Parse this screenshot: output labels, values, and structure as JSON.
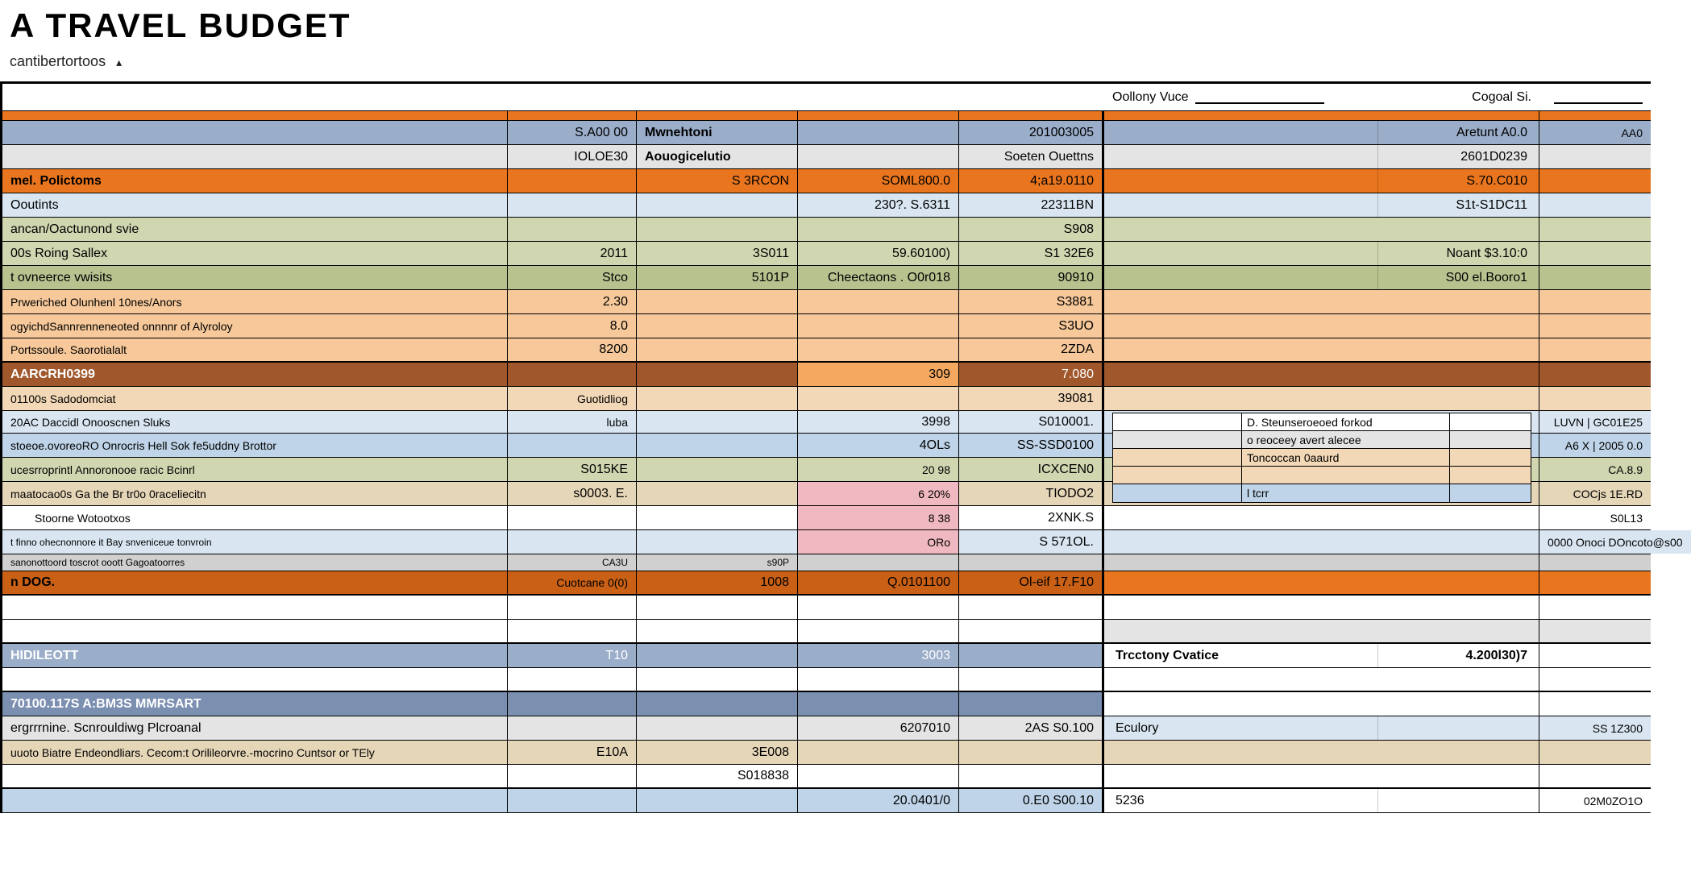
{
  "title": "A TRAVEL BUDGET",
  "subtitle": "cantibertortoos",
  "header": {
    "field1_label": "Oollony Vuce",
    "field2_label": "Cogoal Si."
  },
  "colors": {
    "orange": "#e9761f",
    "orange_dark": "#c96015",
    "orange_light": "#f4a860",
    "peach": "#f6c89a",
    "peach2": "#f2d8b6",
    "olive": "#b8c28f",
    "olive_light": "#d0d6b0",
    "bluegray": "#9aadc9",
    "bluegray_dark": "#7b8fb1",
    "lightblue": "#bfd4e8",
    "lightblue2": "#d9e6f2",
    "pink": "#f0b8c0",
    "gray": "#d0d0d0",
    "gray_light": "#e4e4e4",
    "tan": "#e6d6b8",
    "sienna": "#a0572c",
    "white": "#ffffff",
    "text": "#1a1a1a"
  },
  "rows": [
    {
      "bg": "orange",
      "label": "",
      "a": "",
      "b": "",
      "c": "",
      "d": "",
      "side": "",
      "side2": "",
      "h": 12
    },
    {
      "bg": "bluegray",
      "label": "",
      "a": "S.A00 00",
      "b": "Mwnehtoni",
      "c": "",
      "d": "201003005",
      "side_split": [
        "",
        "Aretunt A0.0"
      ],
      "side2": "AA0",
      "b_align": "right",
      "a_b": "1"
    },
    {
      "bg": "gray_light",
      "label": "",
      "a": "IOLOE30",
      "b": "Aouogicelutio",
      "c": "",
      "d": "Soeten Ouettns",
      "side_split": [
        "",
        "2601D0239"
      ],
      "side2": "",
      "a_b": "1"
    },
    {
      "bg": "orange",
      "label": "mel. Polictoms",
      "labelb": "1",
      "a": "",
      "b": "S 3RCON",
      "c": "SOML800.0",
      "d": "4;a19.0110",
      "side_split": [
        "",
        "S.70.C010"
      ],
      "side2": ""
    },
    {
      "bg": "lightblue2",
      "label": "Ooutints",
      "a": "",
      "b": "",
      "c": "230?. S.6311",
      "d": "22311BN",
      "side_split": [
        "",
        "S1t-S1DC11"
      ],
      "side2": ""
    },
    {
      "bg": "olive_light",
      "label": "ancan/Oactunond svie",
      "a": "",
      "b": "",
      "c": "",
      "d": "S908",
      "side": "",
      "side2": ""
    },
    {
      "bg": "olive_light",
      "label": "00s Roing Sallex",
      "a": "",
      "b": "3S011",
      "c": "59.60100)",
      "d": "S1 32E6",
      "side_split": [
        "",
        "Noant $3.10:0"
      ],
      "side2": "",
      "a2": "2011"
    },
    {
      "bg": "olive",
      "label": "t ovneerce vwisits",
      "a": "Stco",
      "b": "5101P",
      "c": "Cheectaons . O0r018",
      "d": "90910",
      "side_split": [
        "",
        "S00 el.Booro1"
      ],
      "side2": ""
    },
    {
      "bg": "peach",
      "label": "Prweriched Olunhenl 10nes/Anors",
      "a": "2.30",
      "b": "",
      "c": "",
      "d": "S3881",
      "side": "",
      "side2": "",
      "labelsize": "small"
    },
    {
      "bg": "peach",
      "split": "peach2",
      "label": "ogyichdSannrenneneoted onnnnr of Alyroloy",
      "a": "8.0",
      "b": "",
      "c": "",
      "d": "S3UO",
      "side": "",
      "side2": "",
      "labelsize": "small"
    },
    {
      "bg": "peach",
      "label": "Portssoule. Saorotialalt",
      "a": "8200",
      "b": "",
      "c": "",
      "d": "2ZDA",
      "side": "",
      "side2": "",
      "thick": "1",
      "labelsize": "small"
    },
    {
      "bg": "sienna",
      "label": "AARCRH0399",
      "labelb": "1",
      "a": "",
      "b": "",
      "c": "309",
      "d": "7.080",
      "side": "",
      "side2": "",
      "white": "1",
      "c_bg": "orange_light"
    },
    {
      "bg": "peach2",
      "label": "01100s Sadodomciat",
      "a": "Guotidliog",
      "b": "",
      "c": "",
      "d": "39081",
      "side": "",
      "side2": "",
      "labelsize": "small",
      "a_small": "1"
    },
    {
      "bg": "lightblue2",
      "label": "20AC Daccidl Onooscnen Sluks",
      "a": "luba",
      "b": "",
      "c": "3998",
      "d": "S010001.",
      "sidebox": "1",
      "side2": "LUVN | GC01E25",
      "labelsize": "small",
      "a_small": "1"
    },
    {
      "bg": "lightblue",
      "label": "stoeoe.ovoreoRO Onrocris Hell Sok fe5uddny Brottor",
      "a": "",
      "b": "",
      "c": "4OLs",
      "d": "SS-SSD0100",
      "side": "",
      "side2": "A6 X | 2005 0.0",
      "labelsize": "small"
    },
    {
      "bg": "olive_light",
      "label": "ucesrroprintl Annoronooe racic Bcinrl",
      "a": "S015KE",
      "b": "",
      "c": "20 98",
      "d": "ICXCEN0",
      "side": "",
      "side2": "CA.8.9",
      "labelsize": "small",
      "c_small": "1"
    },
    {
      "bg": "tan",
      "label": "maatocao0s Ga the Br tr0o 0raceliecitn",
      "a": "s0003. E.",
      "b": "",
      "c": "6 20%",
      "d": "TIODO2",
      "side": "",
      "side2": "COCjs   1E.RD",
      "labelsize": "small",
      "c_bg": "pink",
      "c_small": "1"
    },
    {
      "bg": "white",
      "label": "   Stoorne Wotootxos",
      "a": "",
      "b": "",
      "c": "8 38",
      "d": "2XNK.S",
      "side": "",
      "side2": "S0L13",
      "labelsize": "small",
      "c_bg": "pink",
      "c_small": "1",
      "lbl_indent": "1"
    },
    {
      "bg": "lightblue2",
      "label": "t finno ohecnonnore it Bay snveniceue tonvroin",
      "a": "",
      "b": "",
      "c": "ORo",
      "d": "S 571OL.",
      "side": "",
      "side2": "0000 Onoci DOncoto@s00",
      "labelsize": "tiny",
      "c_bg": "pink",
      "c_small": "1"
    },
    {
      "bg": "gray",
      "extra": "1",
      "label": "sanonottoord toscrot ooott Gagoatoorres",
      "a": "CA3U",
      "b": "s90P",
      "c": "",
      "d": "",
      "side": "",
      "side2": "",
      "labelsize": "tiny",
      "a_small": "1",
      "b_small": "1"
    },
    {
      "bg": "orange_dark",
      "label": "n DOG.",
      "labelb": "1",
      "a": "Cuotcane 0(0)",
      "b": "1008",
      "c": "Q.0101100",
      "d": "Ol-eif 17.F10",
      "side": "",
      "side2": "",
      "side_bg": "orange",
      "thick": "1",
      "a_small": "1"
    },
    {
      "bg": "white",
      "label": "",
      "a": "",
      "b": "",
      "c": "",
      "d": "",
      "side": "",
      "side2": ""
    },
    {
      "bg": "white",
      "label": "",
      "a": "",
      "b": "",
      "c": "",
      "d": "",
      "side": "",
      "side2": "",
      "side_bg": "gray_light",
      "thick": "1"
    },
    {
      "bg": "bluegray",
      "label": "HIDILEOTT",
      "labelb": "1",
      "a": "T10",
      "b": "",
      "c": "3003",
      "d": "",
      "side_split": [
        "Trcctony Cvatice",
        "4.200l30)7"
      ],
      "side2": "",
      "white": "1",
      "side_bg": "white",
      "side_text": "1"
    },
    {
      "bg": "white",
      "label": "",
      "a": "",
      "b": "",
      "c": "",
      "d": "",
      "side": "",
      "side2": "",
      "thick": "1"
    },
    {
      "bg": "bluegray_dark",
      "label": "70100.117S A:BM3S MMRSART",
      "labelb": "1",
      "a": "",
      "b": "",
      "c": "",
      "d": "",
      "side": "",
      "side2": "",
      "white": "1",
      "side_bg": "white"
    },
    {
      "bg": "gray_light",
      "label": "ergrrrnine. Scnrouldiwg Plcroanal",
      "a": "",
      "b": "",
      "c": "6207010",
      "d": "2AS S0.100",
      "side_split": [
        "Eculory",
        ""
      ],
      "side2": "SS 1Z300",
      "side_bg": "lightblue2"
    },
    {
      "bg": "tan",
      "label": "uuoto Biatre Endeondliars. Cecom:t Orilileorvre.-mocrino Cuntsor or TEly",
      "a": "E10A",
      "b": "3E008",
      "c": "",
      "d": "",
      "side": "",
      "side2": "",
      "labelsize": "small"
    },
    {
      "bg": "white",
      "label": "",
      "a": "",
      "b": "S018838",
      "c": "",
      "d": "",
      "side": "",
      "side2": "",
      "thick": "1"
    },
    {
      "bg": "lightblue",
      "label": "",
      "a": "",
      "b": "",
      "c": "20.0401/0",
      "d": "0.E0 S00.10",
      "side_split": [
        "5236",
        ""
      ],
      "side2": "02M0ZO1O",
      "side_bg": "white"
    }
  ],
  "sidebox": {
    "rows": [
      {
        "c1": "",
        "c2": "D. Steunseroeoed forkod",
        "c3": ""
      },
      {
        "c1": "",
        "c2": "o reoceey avert alecee",
        "c3": ""
      },
      {
        "c1": "",
        "c2": "Toncoccan 0aaurd",
        "c3": ""
      },
      {
        "c1": "",
        "c2": "",
        "c3": ""
      },
      {
        "c1": "",
        "c2": "l tcrr",
        "c3": ""
      }
    ],
    "bg_alt": [
      "white",
      "gray_light",
      "peach2",
      "peach2",
      "lightblue"
    ]
  }
}
